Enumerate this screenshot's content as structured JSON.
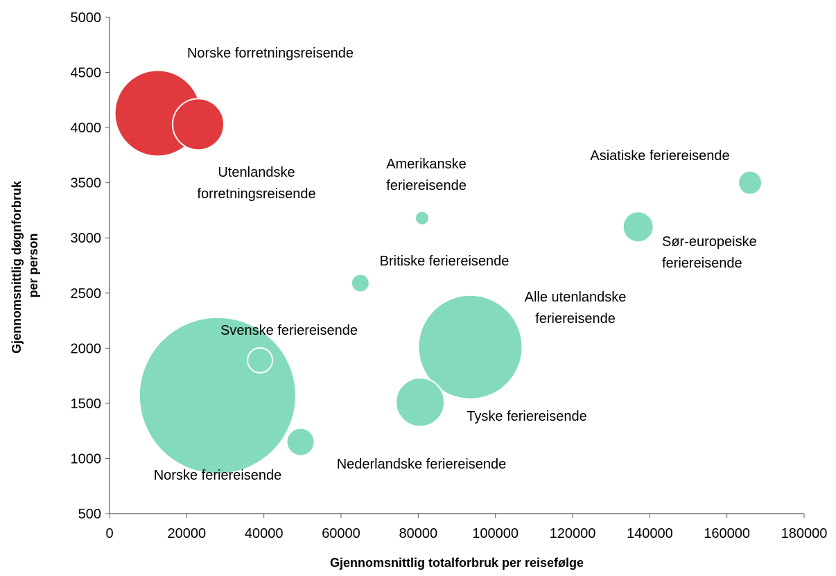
{
  "chart_data": {
    "type": "bubble",
    "xlabel": "Gjennomsnittlig totalforbruk per reisefølge",
    "ylabel": [
      "Gjennomsnittlig døgnforbruk",
      "per person"
    ],
    "xlim": [
      0,
      180000
    ],
    "xticks": [
      0,
      20000,
      40000,
      60000,
      80000,
      100000,
      120000,
      140000,
      160000,
      180000
    ],
    "ylim": [
      500,
      5000
    ],
    "yticks": [
      500,
      1000,
      1500,
      2000,
      2500,
      3000,
      3500,
      4000,
      4500,
      5000
    ],
    "points": [
      {
        "label": [
          "Norske forretningsreisende"
        ],
        "x": 12500,
        "y": 4130,
        "size": 3844,
        "color": "#e0393e"
      },
      {
        "label": [
          "Utenlandske",
          "forretningsreisende"
        ],
        "x": 23000,
        "y": 4030,
        "size": 1369,
        "color": "#e0393e"
      },
      {
        "label": [
          "Amerikanske",
          "feriereisende"
        ],
        "x": 81000,
        "y": 3180,
        "size": 100,
        "color": "#84dbbb"
      },
      {
        "label": [
          "Asiatiske feriereisende"
        ],
        "x": 166000,
        "y": 3500,
        "size": 289,
        "color": "#84dbbb"
      },
      {
        "label": [
          "Sør-europeiske",
          "feriereisende"
        ],
        "x": 137000,
        "y": 3100,
        "size": 484,
        "color": "#84dbbb"
      },
      {
        "label": [
          "Britiske feriereisende"
        ],
        "x": 65000,
        "y": 2590,
        "size": 169,
        "color": "#84dbbb"
      },
      {
        "label": [
          "Alle utenlandske",
          "feriereisende"
        ],
        "x": 93500,
        "y": 2010,
        "size": 5625,
        "color": "#84dbbb"
      },
      {
        "label": [
          "Norske feriereisende"
        ],
        "x": 28000,
        "y": 1570,
        "size": 12769,
        "color": "#84dbbb"
      },
      {
        "label": [
          "Svenske feriereisende"
        ],
        "x": 39000,
        "y": 1890,
        "size": 324,
        "color": "#84dbbb"
      },
      {
        "label": [
          "Tyske feriereisende"
        ],
        "x": 80500,
        "y": 1510,
        "size": 1225,
        "color": "#84dbbb"
      },
      {
        "label": [
          "Nederlandske feriereisende"
        ],
        "x": 49500,
        "y": 1150,
        "size": 400,
        "color": "#84dbbb"
      }
    ]
  }
}
